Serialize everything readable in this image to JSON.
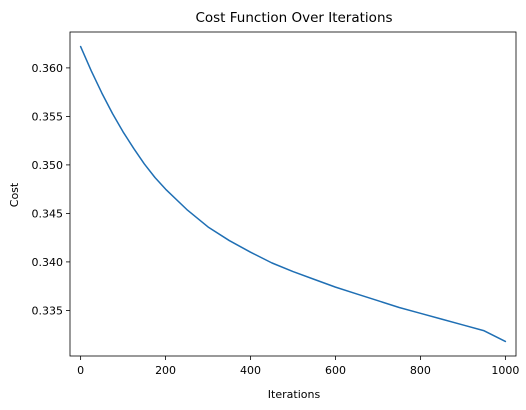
{
  "chart_data": {
    "type": "line",
    "title": "Cost Function Over Iterations",
    "xlabel": "Iterations",
    "ylabel": "Cost",
    "xlim": [
      -25,
      1025
    ],
    "ylim": [
      0.3303,
      0.3637
    ],
    "xticks": [
      0,
      200,
      400,
      600,
      800,
      1000
    ],
    "xtick_labels": [
      "0",
      "200",
      "400",
      "600",
      "800",
      "1000"
    ],
    "yticks": [
      0.335,
      0.34,
      0.345,
      0.35,
      0.355,
      0.36
    ],
    "ytick_labels": [
      "0.335",
      "0.340",
      "0.345",
      "0.350",
      "0.355",
      "0.360"
    ],
    "grid": false,
    "legend": "none",
    "series": [
      {
        "color": "#1f6fb4",
        "x": [
          0,
          25,
          50,
          75,
          100,
          125,
          150,
          175,
          200,
          250,
          300,
          350,
          400,
          450,
          500,
          550,
          600,
          650,
          700,
          750,
          800,
          850,
          900,
          950,
          1000
        ],
        "y": [
          0.3622,
          0.3597,
          0.3574,
          0.3553,
          0.3534,
          0.3517,
          0.3501,
          0.3487,
          0.3475,
          0.3454,
          0.3436,
          0.3422,
          0.341,
          0.3399,
          0.339,
          0.3382,
          0.3374,
          0.3367,
          0.336,
          0.3353,
          0.3347,
          0.3341,
          0.3335,
          0.3329,
          0.3318
        ]
      }
    ]
  }
}
